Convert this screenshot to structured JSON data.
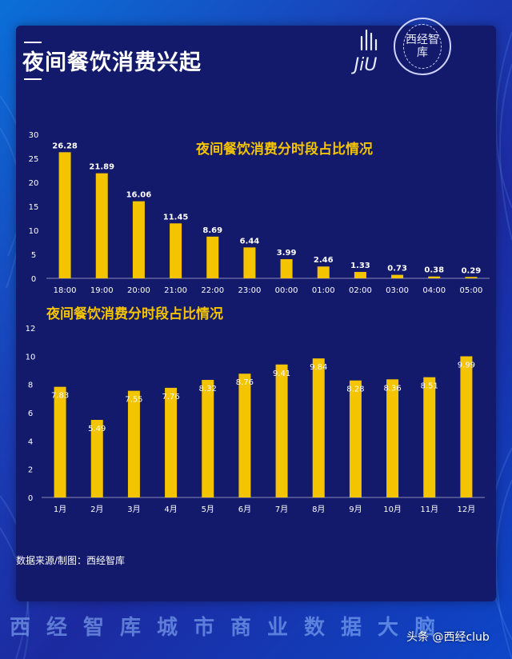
{
  "page": {
    "title": "夜间餐饮消费兴起",
    "source": "数据来源/制图：西经智库",
    "footer": "西经智库城市商业数据大脑",
    "watermark": "头条 @西经club"
  },
  "logos": {
    "jiu_text": "JiU",
    "seal_text": "西经智库"
  },
  "colors": {
    "background": "#1c2aa0",
    "panel": "#13196b",
    "bar": "#f5c400",
    "axis_text": "#ffffff"
  },
  "chart_data": [
    {
      "type": "bar",
      "title": "夜间餐饮消费分时段占比情况",
      "categories": [
        "18:00",
        "19:00",
        "20:00",
        "21:00",
        "22:00",
        "23:00",
        "00:00",
        "01:00",
        "02:00",
        "03:00",
        "04:00",
        "05:00"
      ],
      "values": [
        26.28,
        21.89,
        16.06,
        11.45,
        8.69,
        6.44,
        3.99,
        2.46,
        1.33,
        0.73,
        0.38,
        0.29
      ],
      "labels": [
        "26.28",
        "21.89",
        "16.06",
        "11.45",
        "8.69",
        "6.44",
        "3.99",
        "2.46",
        "1.33",
        "0.73",
        "0.38",
        "0.29"
      ],
      "yticks": [
        "0",
        "5",
        "10",
        "15",
        "20",
        "25",
        "30"
      ],
      "ylim": [
        0,
        30
      ],
      "grid": false,
      "label_position": "above"
    },
    {
      "type": "bar",
      "title": "夜间餐饮消费分时段占比情况",
      "categories": [
        "1月",
        "2月",
        "3月",
        "4月",
        "5月",
        "6月",
        "7月",
        "8月",
        "9月",
        "10月",
        "11月",
        "12月"
      ],
      "values": [
        7.83,
        5.49,
        7.55,
        7.76,
        8.32,
        8.76,
        9.41,
        9.84,
        8.28,
        8.36,
        8.51,
        9.99
      ],
      "labels": [
        "7.83",
        "5.49",
        "7.55",
        "7.76",
        "8.32",
        "8.76",
        "9.41",
        "9.84",
        "8.28",
        "8.36",
        "8.51",
        "9.99"
      ],
      "yticks": [
        "0",
        "2",
        "4",
        "6",
        "8",
        "10",
        "12"
      ],
      "ylim": [
        0,
        12
      ],
      "grid": false,
      "label_position": "inside-top"
    }
  ]
}
